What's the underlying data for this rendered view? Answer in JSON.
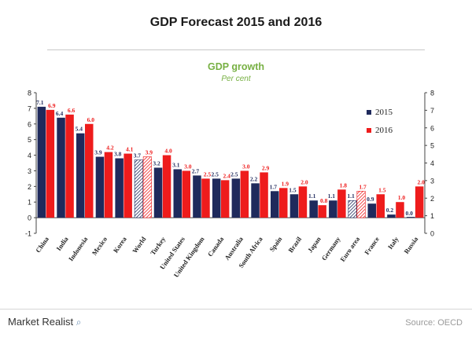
{
  "header": {
    "title": "GDP Forecast 2015 and 2016"
  },
  "footer": {
    "brand": "Market Realist",
    "source": "Source: OECD"
  },
  "chart_data": {
    "type": "bar",
    "title": "GDP growth",
    "subtitle": "Per cent",
    "xlabel": "",
    "ylabel": "",
    "ylim": [
      -1,
      8
    ],
    "yticks": [
      -1,
      0,
      1,
      2,
      3,
      4,
      5,
      6,
      7,
      8
    ],
    "yticks_right": [
      0,
      1,
      2,
      3,
      4,
      5,
      6,
      7,
      8
    ],
    "grid": false,
    "legend_position": "right",
    "categories": [
      "China",
      "India",
      "Indonesia",
      "Mexico",
      "Korea",
      "World",
      "Turkey",
      "United States",
      "United Kingdom",
      "Canada",
      "Australia",
      "South Africa",
      "Spain",
      "Brazil",
      "Japan",
      "Germany",
      "Euro area",
      "France",
      "Italy",
      "Russia"
    ],
    "hatched_categories": [
      "World",
      "Euro area"
    ],
    "series": [
      {
        "name": "2015",
        "color": "#1f2a5c",
        "values": [
          7.1,
          6.4,
          5.4,
          3.9,
          3.8,
          3.7,
          3.2,
          3.1,
          2.7,
          2.5,
          2.5,
          2.2,
          1.7,
          1.5,
          1.1,
          1.1,
          1.1,
          0.9,
          0.2,
          0.0
        ],
        "labels": [
          "7.1",
          "6.4",
          "5.4",
          "3.9",
          "3.8",
          "3.7",
          "3.2",
          "3.1",
          "2.7",
          "2.5",
          "2.5",
          "2.2",
          "1.7",
          "1.5",
          "1.1",
          "1.1",
          "1.1",
          "0.9",
          "0.2",
          "0.0"
        ]
      },
      {
        "name": "2016",
        "color": "#ee1c1c",
        "values": [
          6.9,
          6.6,
          6.0,
          4.2,
          4.1,
          3.9,
          4.0,
          3.0,
          2.5,
          2.4,
          3.0,
          2.9,
          1.9,
          2.0,
          0.8,
          1.8,
          1.7,
          1.5,
          1.0,
          2.0
        ],
        "labels": [
          "6.9",
          "6.6",
          "6.0",
          "4.2",
          "4.1",
          "3.9",
          "4.0",
          "3.0",
          "2.5",
          "2.4",
          "3.0",
          "2.9",
          "1.9",
          "2.0",
          "0.8",
          "1.8",
          "1.7",
          "1.5",
          "1.0",
          "2.0"
        ]
      }
    ]
  }
}
